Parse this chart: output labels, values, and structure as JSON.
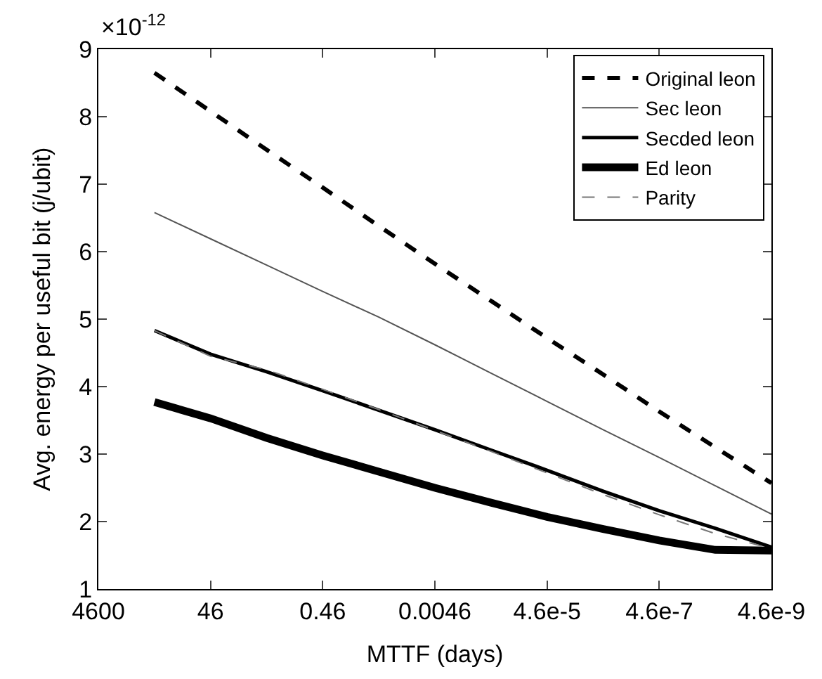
{
  "chart_data": {
    "type": "line",
    "xlabel": "MTTF (days)",
    "ylabel": "Avg. energy per useful bit (j/ubit)",
    "log": "x",
    "x": [
      460,
      46,
      4.6,
      0.46,
      0.046,
      0.0046,
      0.00046,
      4.6e-05,
      4.6e-06,
      4.6e-07,
      4.6e-08,
      4.6e-09
    ],
    "series": [
      {
        "name": "Original leon",
        "color": "#000000",
        "line_style": "dashed",
        "values": [
          8.65,
          8.08,
          7.51,
          6.95,
          6.38,
          5.82,
          5.27,
          4.72,
          4.18,
          3.63,
          3.1,
          2.57
        ]
      },
      {
        "name": "Sec leon",
        "color": "#555555",
        "line_style": "solid",
        "values": [
          6.58,
          6.19,
          5.8,
          5.41,
          5.03,
          4.62,
          4.2,
          3.78,
          3.36,
          2.95,
          2.53,
          2.11
        ]
      },
      {
        "name": "Secded leon",
        "color": "#000000",
        "line_style": "solid",
        "values": [
          4.83,
          4.48,
          4.22,
          3.94,
          3.65,
          3.36,
          3.06,
          2.76,
          2.45,
          2.16,
          1.9,
          1.62
        ]
      },
      {
        "name": "Ed leon",
        "color": "#000000",
        "line_style": "solid",
        "values": [
          3.77,
          3.53,
          3.24,
          2.98,
          2.74,
          2.5,
          2.28,
          2.07,
          1.89,
          1.72,
          1.58,
          1.57
        ]
      },
      {
        "name": "Parity",
        "color": "#777777",
        "line_style": "dashed",
        "values": [
          4.83,
          4.45,
          4.25,
          3.96,
          3.66,
          3.35,
          3.04,
          2.72,
          2.4,
          2.1,
          1.82,
          1.6
        ]
      }
    ],
    "xlim": [
      4600,
      4.6e-09
    ],
    "xticks": [
      {
        "value": 4600,
        "label": "4600"
      },
      {
        "value": 46,
        "label": "46"
      },
      {
        "value": 0.46,
        "label": "0.46"
      },
      {
        "value": 0.0046,
        "label": "0.0046"
      },
      {
        "value": 4.6e-05,
        "label": "4.6e-5"
      },
      {
        "value": 4.6e-07,
        "label": "4.6e-7"
      },
      {
        "value": 4.6e-09,
        "label": "4.6e-9"
      }
    ],
    "ylim": [
      1,
      9
    ],
    "yticks": [
      1,
      2,
      3,
      4,
      5,
      6,
      7,
      8,
      9
    ],
    "annotations": [
      "×10$^{-12}$"
    ],
    "legend": "top right",
    "marker": "none"
  }
}
